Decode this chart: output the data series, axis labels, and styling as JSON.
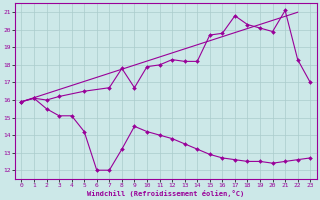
{
  "bg_color": "#cce8e8",
  "line_color": "#990099",
  "grid_color": "#aacccc",
  "xlabel": "Windchill (Refroidissement éolien,°C)",
  "xlim": [
    -0.5,
    23.5
  ],
  "ylim": [
    11.5,
    21.5
  ],
  "xticks": [
    0,
    1,
    2,
    3,
    4,
    5,
    6,
    7,
    8,
    9,
    10,
    11,
    12,
    13,
    14,
    15,
    16,
    17,
    18,
    19,
    20,
    21,
    22,
    23
  ],
  "yticks": [
    12,
    13,
    14,
    15,
    16,
    17,
    18,
    19,
    20,
    21
  ],
  "line1_x": [
    0,
    1,
    2,
    3,
    4,
    5,
    6,
    7,
    8,
    9,
    10,
    11,
    12,
    13,
    14,
    15,
    16,
    17,
    18,
    19,
    20,
    21,
    22,
    23
  ],
  "line1_y": [
    15.9,
    16.1,
    15.5,
    15.1,
    15.1,
    14.2,
    12.0,
    12.0,
    13.2,
    14.5,
    14.2,
    14.0,
    13.8,
    13.5,
    13.2,
    12.9,
    12.7,
    12.6,
    12.5,
    12.5,
    12.4,
    12.5,
    12.6,
    12.7
  ],
  "line2_x": [
    0,
    1,
    2,
    3,
    5,
    7,
    8,
    9,
    10,
    11,
    12,
    13,
    14,
    15,
    16,
    17,
    18,
    19,
    20,
    21,
    22,
    23
  ],
  "line2_y": [
    15.9,
    16.1,
    16.0,
    16.2,
    16.5,
    16.7,
    17.8,
    16.7,
    17.9,
    18.0,
    18.3,
    18.2,
    18.2,
    19.7,
    19.8,
    20.8,
    20.3,
    20.1,
    19.9,
    21.1,
    18.3,
    17.0
  ],
  "line3_x": [
    0,
    22
  ],
  "line3_y": [
    15.9,
    21.0
  ]
}
